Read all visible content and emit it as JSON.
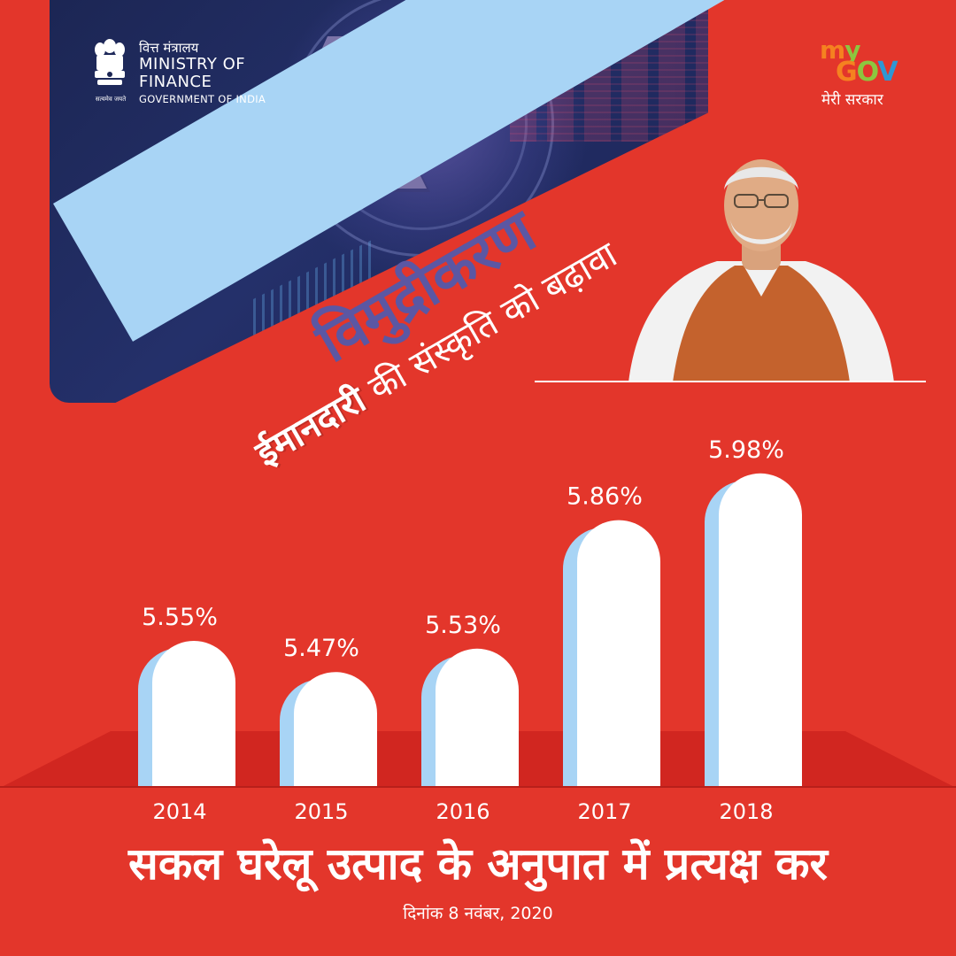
{
  "header": {
    "ministry_hi": "वित्त मंत्रालय",
    "ministry_en": "MINISTRY OF FINANCE",
    "government": "GOVERNMENT OF INDIA",
    "emblem_motto": "सत्यमेव जयते",
    "mygov_tagline": "मेरी सरकार"
  },
  "headline": {
    "title": "विमुद्रीकरण",
    "subtitle_bold": "ईमानदारी",
    "subtitle_rest": " की संस्कृति को बढ़ावा"
  },
  "chart_data": {
    "type": "bar",
    "title": "सकल घरेलू उत्पाद के अनुपात में प्रत्यक्ष कर",
    "categories": [
      "2014",
      "2015",
      "2016",
      "2017",
      "2018"
    ],
    "values": [
      5.55,
      5.47,
      5.53,
      5.86,
      5.98
    ],
    "labels": [
      "5.55%",
      "5.47%",
      "5.53%",
      "5.86%",
      "5.98%"
    ],
    "xlabel": "",
    "ylabel": "",
    "grid": false,
    "legend": "none",
    "colors": {
      "bar": "#ffffff",
      "bar_shadow": "#a8d4f5",
      "background": "#e3362b"
    }
  },
  "footer": {
    "date": "दिनांक 8 नवंबर, 2020"
  }
}
